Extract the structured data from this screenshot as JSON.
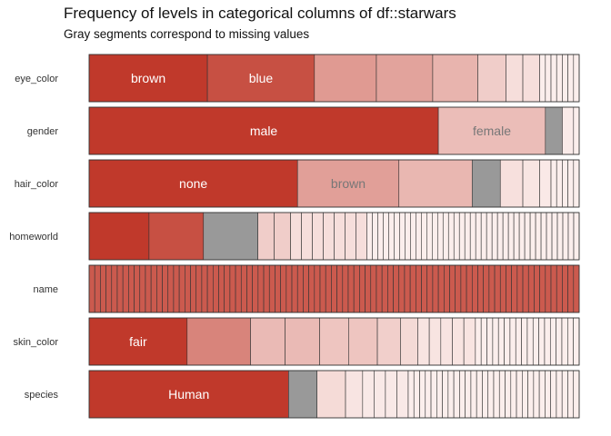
{
  "chart_data": {
    "type": "bar",
    "title": "Frequency of levels in categorical columns of df::starwars",
    "subtitle": "Gray segments correspond to missing values",
    "colors": {
      "base": "#c0392b",
      "light": "#fbeeec",
      "missing": "#999999",
      "border": "#333333"
    },
    "columns": [
      {
        "name": "eye_color",
        "segments": [
          {
            "label": "brown",
            "freq": 21
          },
          {
            "label": "blue",
            "freq": 19
          },
          {
            "freq": 11
          },
          {
            "freq": 10
          },
          {
            "freq": 8
          },
          {
            "freq": 5
          },
          {
            "freq": 3
          },
          {
            "freq": 3
          },
          {
            "freq": 1
          },
          {
            "freq": 1
          },
          {
            "freq": 1
          },
          {
            "freq": 1
          },
          {
            "freq": 1
          },
          {
            "freq": 1
          },
          {
            "freq": 1
          }
        ]
      },
      {
        "name": "gender",
        "segments": [
          {
            "label": "male",
            "freq": 62
          },
          {
            "label": "female",
            "freq": 19
          },
          {
            "freq": 3,
            "missing": true
          },
          {
            "freq": 2
          },
          {
            "freq": 1
          }
        ]
      },
      {
        "name": "hair_color",
        "segments": [
          {
            "label": "none",
            "freq": 37
          },
          {
            "label": "brown",
            "freq": 18
          },
          {
            "freq": 13
          },
          {
            "freq": 5,
            "missing": true
          },
          {
            "freq": 4
          },
          {
            "freq": 3
          },
          {
            "freq": 2
          },
          {
            "freq": 1
          },
          {
            "freq": 1
          },
          {
            "freq": 1
          },
          {
            "freq": 1
          },
          {
            "freq": 1
          }
        ]
      },
      {
        "name": "homeworld",
        "segments": [
          {
            "freq": 11
          },
          {
            "freq": 10
          },
          {
            "freq": 10,
            "missing": true
          },
          {
            "freq": 3
          },
          {
            "freq": 3
          },
          {
            "freq": 2
          },
          {
            "freq": 2
          },
          {
            "freq": 2
          },
          {
            "freq": 2
          },
          {
            "freq": 2
          },
          {
            "freq": 2
          },
          {
            "freq": 2
          },
          {
            "freq": 1
          },
          {
            "freq": 1
          },
          {
            "freq": 1
          },
          {
            "freq": 1
          },
          {
            "freq": 1
          },
          {
            "freq": 1
          },
          {
            "freq": 1
          },
          {
            "freq": 1
          },
          {
            "freq": 1
          },
          {
            "freq": 1
          },
          {
            "freq": 1
          },
          {
            "freq": 1
          },
          {
            "freq": 1
          },
          {
            "freq": 1
          },
          {
            "freq": 1
          },
          {
            "freq": 1
          },
          {
            "freq": 1
          },
          {
            "freq": 1
          },
          {
            "freq": 1
          },
          {
            "freq": 1
          },
          {
            "freq": 1
          },
          {
            "freq": 1
          },
          {
            "freq": 1
          },
          {
            "freq": 1
          },
          {
            "freq": 1
          },
          {
            "freq": 1
          },
          {
            "freq": 1
          },
          {
            "freq": 1
          },
          {
            "freq": 1
          },
          {
            "freq": 1
          },
          {
            "freq": 1
          },
          {
            "freq": 1
          },
          {
            "freq": 1
          },
          {
            "freq": 1
          },
          {
            "freq": 1
          },
          {
            "freq": 1
          },
          {
            "freq": 1
          },
          {
            "freq": 1
          },
          {
            "freq": 1
          }
        ]
      },
      {
        "name": "name",
        "segments": [
          {
            "freq": 1
          },
          {
            "freq": 1
          },
          {
            "freq": 1
          },
          {
            "freq": 1
          },
          {
            "freq": 1
          },
          {
            "freq": 1
          },
          {
            "freq": 1
          },
          {
            "freq": 1
          },
          {
            "freq": 1
          },
          {
            "freq": 1
          },
          {
            "freq": 1
          },
          {
            "freq": 1
          },
          {
            "freq": 1
          },
          {
            "freq": 1
          },
          {
            "freq": 1
          },
          {
            "freq": 1
          },
          {
            "freq": 1
          },
          {
            "freq": 1
          },
          {
            "freq": 1
          },
          {
            "freq": 1
          },
          {
            "freq": 1
          },
          {
            "freq": 1
          },
          {
            "freq": 1
          },
          {
            "freq": 1
          },
          {
            "freq": 1
          },
          {
            "freq": 1
          },
          {
            "freq": 1
          },
          {
            "freq": 1
          },
          {
            "freq": 1
          },
          {
            "freq": 1
          },
          {
            "freq": 1
          },
          {
            "freq": 1
          },
          {
            "freq": 1
          },
          {
            "freq": 1
          },
          {
            "freq": 1
          },
          {
            "freq": 1
          },
          {
            "freq": 1
          },
          {
            "freq": 1
          },
          {
            "freq": 1
          },
          {
            "freq": 1
          },
          {
            "freq": 1
          },
          {
            "freq": 1
          },
          {
            "freq": 1
          },
          {
            "freq": 1
          },
          {
            "freq": 1
          },
          {
            "freq": 1
          },
          {
            "freq": 1
          },
          {
            "freq": 1
          },
          {
            "freq": 1
          },
          {
            "freq": 1
          },
          {
            "freq": 1
          },
          {
            "freq": 1
          },
          {
            "freq": 1
          },
          {
            "freq": 1
          },
          {
            "freq": 1
          },
          {
            "freq": 1
          },
          {
            "freq": 1
          },
          {
            "freq": 1
          },
          {
            "freq": 1
          },
          {
            "freq": 1
          },
          {
            "freq": 1
          },
          {
            "freq": 1
          },
          {
            "freq": 1
          },
          {
            "freq": 1
          },
          {
            "freq": 1
          },
          {
            "freq": 1
          },
          {
            "freq": 1
          },
          {
            "freq": 1
          },
          {
            "freq": 1
          },
          {
            "freq": 1
          },
          {
            "freq": 1
          },
          {
            "freq": 1
          },
          {
            "freq": 1
          },
          {
            "freq": 1
          },
          {
            "freq": 1
          },
          {
            "freq": 1
          },
          {
            "freq": 1
          },
          {
            "freq": 1
          },
          {
            "freq": 1
          },
          {
            "freq": 1
          },
          {
            "freq": 1
          },
          {
            "freq": 1
          },
          {
            "freq": 1
          },
          {
            "freq": 1
          },
          {
            "freq": 1
          },
          {
            "freq": 1
          },
          {
            "freq": 1
          }
        ]
      },
      {
        "name": "skin_color",
        "segments": [
          {
            "label": "fair",
            "freq": 17
          },
          {
            "freq": 11
          },
          {
            "freq": 6
          },
          {
            "freq": 6
          },
          {
            "freq": 5
          },
          {
            "freq": 5
          },
          {
            "freq": 4
          },
          {
            "freq": 3
          },
          {
            "freq": 2
          },
          {
            "freq": 2
          },
          {
            "freq": 2
          },
          {
            "freq": 2
          },
          {
            "freq": 2
          },
          {
            "freq": 1
          },
          {
            "freq": 1
          },
          {
            "freq": 1
          },
          {
            "freq": 1
          },
          {
            "freq": 1
          },
          {
            "freq": 1
          },
          {
            "freq": 1
          },
          {
            "freq": 1
          },
          {
            "freq": 1
          },
          {
            "freq": 1
          },
          {
            "freq": 1
          },
          {
            "freq": 1
          },
          {
            "freq": 1
          },
          {
            "freq": 1
          },
          {
            "freq": 1
          },
          {
            "freq": 1
          },
          {
            "freq": 1
          },
          {
            "freq": 1
          }
        ]
      },
      {
        "name": "species",
        "segments": [
          {
            "label": "Human",
            "freq": 35
          },
          {
            "freq": 5,
            "missing": true
          },
          {
            "freq": 5
          },
          {
            "freq": 3
          },
          {
            "freq": 2
          },
          {
            "freq": 2
          },
          {
            "freq": 2
          },
          {
            "freq": 2
          },
          {
            "freq": 1
          },
          {
            "freq": 1
          },
          {
            "freq": 1
          },
          {
            "freq": 1
          },
          {
            "freq": 1
          },
          {
            "freq": 1
          },
          {
            "freq": 1
          },
          {
            "freq": 1
          },
          {
            "freq": 1
          },
          {
            "freq": 1
          },
          {
            "freq": 1
          },
          {
            "freq": 1
          },
          {
            "freq": 1
          },
          {
            "freq": 1
          },
          {
            "freq": 1
          },
          {
            "freq": 1
          },
          {
            "freq": 1
          },
          {
            "freq": 1
          },
          {
            "freq": 1
          },
          {
            "freq": 1
          },
          {
            "freq": 1
          },
          {
            "freq": 1
          },
          {
            "freq": 1
          },
          {
            "freq": 1
          },
          {
            "freq": 1
          },
          {
            "freq": 1
          },
          {
            "freq": 1
          },
          {
            "freq": 1
          },
          {
            "freq": 1
          },
          {
            "freq": 1
          }
        ]
      }
    ]
  }
}
